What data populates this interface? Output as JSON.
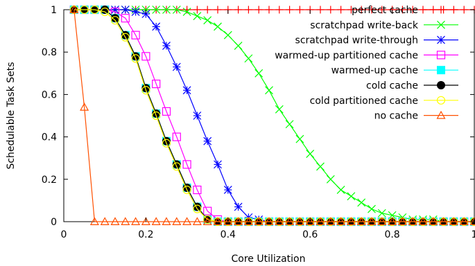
{
  "chart_data": {
    "type": "line",
    "title": "",
    "xlabel": "Core Utilization",
    "ylabel": "Schedulable Task Sets",
    "xlim": [
      0,
      1
    ],
    "ylim": [
      0,
      1
    ],
    "xticks": [
      0,
      0.2,
      0.4,
      0.6,
      0.8,
      1
    ],
    "xtick_labels": [
      "0",
      "0.2",
      "0.4",
      "0.6",
      "0.8",
      "1"
    ],
    "yticks": [
      0,
      0.2,
      0.4,
      0.6,
      0.8,
      1
    ],
    "ytick_labels": [
      "0",
      "0.2",
      "0.4",
      "0.6",
      "0.8",
      "1"
    ],
    "grid": false,
    "legend_position": "top-right",
    "x": [
      0.025,
      0.05,
      0.075,
      0.1,
      0.125,
      0.15,
      0.175,
      0.2,
      0.225,
      0.25,
      0.275,
      0.3,
      0.325,
      0.35,
      0.375,
      0.4,
      0.425,
      0.45,
      0.475,
      0.5,
      0.525,
      0.55,
      0.575,
      0.6,
      0.625,
      0.65,
      0.675,
      0.7,
      0.725,
      0.75,
      0.775,
      0.8,
      0.825,
      0.85,
      0.875,
      0.9,
      0.925,
      0.95,
      0.975,
      1.0
    ],
    "series": [
      {
        "name": "perfect cache",
        "color": "#ff0000",
        "marker": "plus",
        "values": [
          1,
          1,
          1,
          1,
          1,
          1,
          1,
          1,
          1,
          1,
          1,
          1,
          1,
          1,
          1,
          1,
          1,
          1,
          1,
          1,
          1,
          1,
          1,
          1,
          1,
          1,
          1,
          1,
          1,
          1,
          1,
          1,
          1,
          1,
          1,
          1,
          1,
          1,
          1,
          1
        ]
      },
      {
        "name": "scratchpad write-back",
        "color": "#00ff00",
        "marker": "cross",
        "values": [
          1,
          1,
          1,
          1,
          1,
          1,
          1,
          1,
          1,
          1,
          1,
          0.99,
          0.97,
          0.95,
          0.92,
          0.88,
          0.83,
          0.77,
          0.7,
          0.62,
          0.53,
          0.46,
          0.39,
          0.32,
          0.26,
          0.2,
          0.15,
          0.12,
          0.09,
          0.06,
          0.04,
          0.03,
          0.02,
          0.01,
          0.01,
          0.01,
          0,
          0,
          0,
          0
        ]
      },
      {
        "name": "scratchpad write-through",
        "color": "#0000ff",
        "marker": "star",
        "values": [
          1,
          1,
          1,
          1,
          1,
          1,
          0.99,
          0.98,
          0.92,
          0.83,
          0.73,
          0.62,
          0.5,
          0.38,
          0.27,
          0.15,
          0.07,
          0.02,
          0.01,
          0,
          0,
          0,
          0,
          0,
          0,
          0,
          0,
          0,
          0,
          0,
          0,
          0,
          0,
          0,
          0,
          0,
          0,
          0,
          0,
          0
        ]
      },
      {
        "name": "warmed-up partitioned cache",
        "color": "#ff00ff",
        "marker": "square-open",
        "values": [
          1,
          1,
          1,
          1,
          0.99,
          0.96,
          0.88,
          0.78,
          0.65,
          0.52,
          0.4,
          0.27,
          0.15,
          0.05,
          0.01,
          0,
          0,
          0,
          0,
          0,
          0,
          0,
          0,
          0,
          0,
          0,
          0,
          0,
          0,
          0,
          0,
          0,
          0,
          0,
          0,
          0,
          0,
          0,
          0,
          0
        ]
      },
      {
        "name": "warmed-up cache",
        "color": "#00ffff",
        "marker": "square-filled",
        "values": [
          1,
          1,
          1,
          1,
          0.96,
          0.88,
          0.78,
          0.63,
          0.51,
          0.38,
          0.27,
          0.16,
          0.07,
          0.01,
          0,
          0,
          0,
          0,
          0,
          0,
          0,
          0,
          0,
          0,
          0,
          0,
          0,
          0,
          0,
          0,
          0,
          0,
          0,
          0,
          0,
          0,
          0,
          0,
          0,
          0
        ]
      },
      {
        "name": "cold cache",
        "color": "#000000",
        "marker": "circle-filled",
        "values": [
          1,
          1,
          1,
          1,
          0.96,
          0.88,
          0.78,
          0.63,
          0.51,
          0.38,
          0.27,
          0.16,
          0.07,
          0.01,
          0,
          0,
          0,
          0,
          0,
          0,
          0,
          0,
          0,
          0,
          0,
          0,
          0,
          0,
          0,
          0,
          0,
          0,
          0,
          0,
          0,
          0,
          0,
          0,
          0,
          0
        ]
      },
      {
        "name": "cold partitioned cache",
        "color": "#ffff00",
        "marker": "circle-open",
        "values": [
          1,
          1,
          1,
          0.99,
          0.95,
          0.87,
          0.77,
          0.62,
          0.5,
          0.37,
          0.26,
          0.15,
          0.06,
          0.01,
          0,
          0,
          0,
          0,
          0,
          0,
          0,
          0,
          0,
          0,
          0,
          0,
          0,
          0,
          0,
          0,
          0,
          0,
          0,
          0,
          0,
          0,
          0,
          0,
          0,
          0
        ]
      },
      {
        "name": "no cache",
        "color": "#ff5000",
        "marker": "triangle-open",
        "values": [
          1,
          0.54,
          0,
          0,
          0,
          0,
          0,
          0,
          0,
          0,
          0,
          0,
          0,
          0,
          0,
          0,
          0,
          0,
          0,
          0,
          0,
          0,
          0,
          0,
          0,
          0,
          0,
          0,
          0,
          0,
          0,
          0,
          0,
          0,
          0,
          0,
          0,
          0,
          0,
          0
        ]
      }
    ]
  }
}
